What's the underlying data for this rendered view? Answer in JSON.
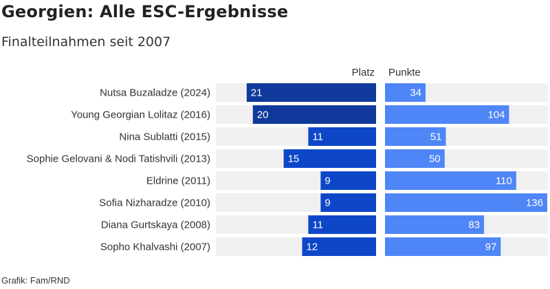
{
  "header": {
    "title": "Georgien: Alle ESC-Ergebnisse",
    "subtitle": "Finalteilnahmen seit 2007"
  },
  "footer": {
    "source": "Grafik: Fam/RND"
  },
  "colors": {
    "platz_dark": "#0f3a9b",
    "platz_bar": "#0d47c8",
    "punkte_bar": "#4f86f7",
    "track": "#f0f0f0",
    "label": "#333333"
  },
  "chart_data": {
    "type": "bar",
    "categories": [
      "Nutsa Buzaladze (2024)",
      "Young Georgian Lolitaz (2016)",
      "Nina Sublatti (2015)",
      "Sophie Gelovani & Nodi Tatishvili (2013)",
      "Eldrine (2011)",
      "Sofia Nizharadze (2010)",
      "Diana Gurtskaya (2008)",
      "Sopho Khalvashi (2007)"
    ],
    "series": [
      {
        "name": "Platz",
        "values": [
          21,
          20,
          11,
          15,
          9,
          9,
          11,
          12
        ]
      },
      {
        "name": "Punkte",
        "values": [
          34,
          104,
          51,
          50,
          110,
          136,
          83,
          97
        ]
      }
    ],
    "platz_range": [
      0,
      26
    ],
    "punkte_range": [
      0,
      136
    ],
    "value_labels": true
  }
}
